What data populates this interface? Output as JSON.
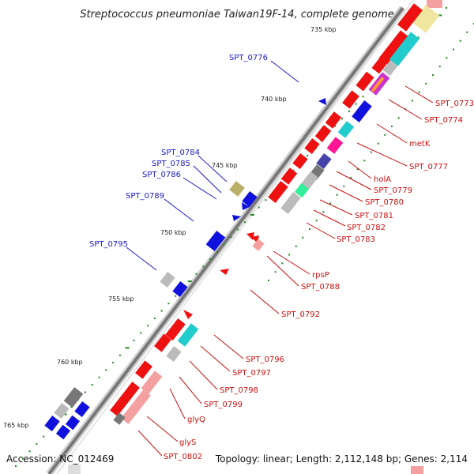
{
  "title": "Streptococcus pneumoniae Taiwan19F-14, complete genome",
  "accession": "Accession: NC_012469",
  "summary": "Topology: linear; Length: 2,112,148 bp; Genes: 2,114",
  "scale_labels": [
    "735 kbp",
    "740 kbp",
    "745 kbp",
    "750 kbp",
    "755 kbp",
    "760 kbp",
    "765 kbp"
  ],
  "reverse_strand_labels": [
    "SPT_0776",
    "SPT_0784",
    "SPT_0785",
    "SPT_0786",
    "SPT_0789",
    "SPT_0795"
  ],
  "forward_strand_labels": [
    "SPT_0773",
    "SPT_0774",
    "metK",
    "SPT_0777",
    "holA",
    "SPT_0779",
    "SPT_0780",
    "SPT_0781",
    "SPT_0782",
    "SPT_0783",
    "rpsP",
    "SPT_0788",
    "SPT_0792",
    "SPT_0796",
    "SPT_0797",
    "SPT_0798",
    "SPT_0799",
    "glyQ",
    "glyS",
    "SPT_0802"
  ],
  "colors": {
    "backbone": "#777777",
    "forward_gene": "#ee1111",
    "reverse_gene": "#1111dd",
    "forward_label": "#cc1111",
    "reverse_label": "#1a1acc",
    "tick": "#228822"
  }
}
